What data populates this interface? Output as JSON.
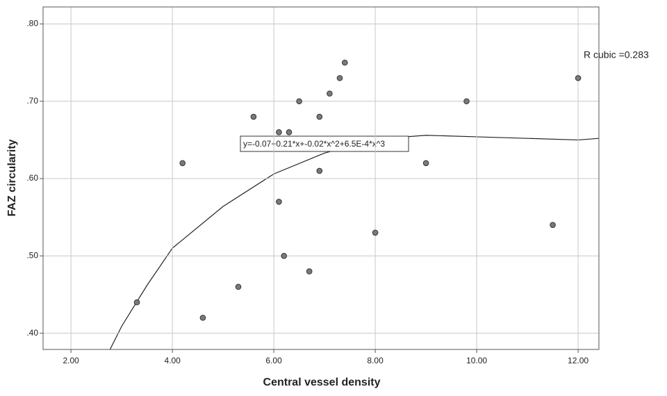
{
  "chart_data": {
    "type": "scatter",
    "x_label": "Central vessel density",
    "y_label": "FAZ circularity",
    "annotations": [
      "R cubic =0.283",
      "y=-0.07+0.21*x+-0.02*x^2+6.5E-4*x^3"
    ],
    "xlim": [
      1.45,
      12.41
    ],
    "ylim": [
      0.379,
      0.822
    ],
    "xticks": [
      {
        "value": 2,
        "label": "2.00"
      },
      {
        "value": 4,
        "label": "4.00"
      },
      {
        "value": 6,
        "label": "6.00"
      },
      {
        "value": 8,
        "label": "8.00"
      },
      {
        "value": 10,
        "label": "10.00"
      },
      {
        "value": 12,
        "label": "12.00"
      }
    ],
    "yticks": [
      {
        "value": 0.4,
        "label": ".40"
      },
      {
        "value": 0.5,
        "label": ".50"
      },
      {
        "value": 0.6,
        "label": ".60"
      },
      {
        "value": 0.7,
        "label": ".70"
      },
      {
        "value": 0.8,
        "label": ".80"
      }
    ],
    "grid": true,
    "series": [
      {
        "color": "#7a7a7a",
        "x": [
          3.3,
          4.2,
          4.6,
          5.3,
          5.6,
          6.1,
          6.1,
          6.2,
          6.3,
          6.5,
          6.7,
          6.9,
          6.9,
          7.1,
          7.3,
          7.4,
          8.0,
          9.0,
          9.8,
          11.5,
          12.0
        ],
        "values": [
          0.44,
          0.62,
          0.42,
          0.46,
          0.68,
          0.66,
          0.57,
          0.5,
          0.66,
          0.7,
          0.48,
          0.68,
          0.61,
          0.71,
          0.73,
          0.75,
          0.53,
          0.62,
          0.7,
          0.54,
          0.73
        ]
      },
      {
        "type": "line",
        "color": "#222222",
        "x": [
          2.77,
          3,
          3.5,
          4,
          5,
          6,
          7,
          8,
          9,
          10,
          11,
          12,
          12.41
        ],
        "values": [
          0.379,
          0.409,
          0.462,
          0.51,
          0.564,
          0.606,
          0.633,
          0.651,
          0.656,
          0.654,
          0.652,
          0.65,
          0.652
        ]
      }
    ]
  }
}
